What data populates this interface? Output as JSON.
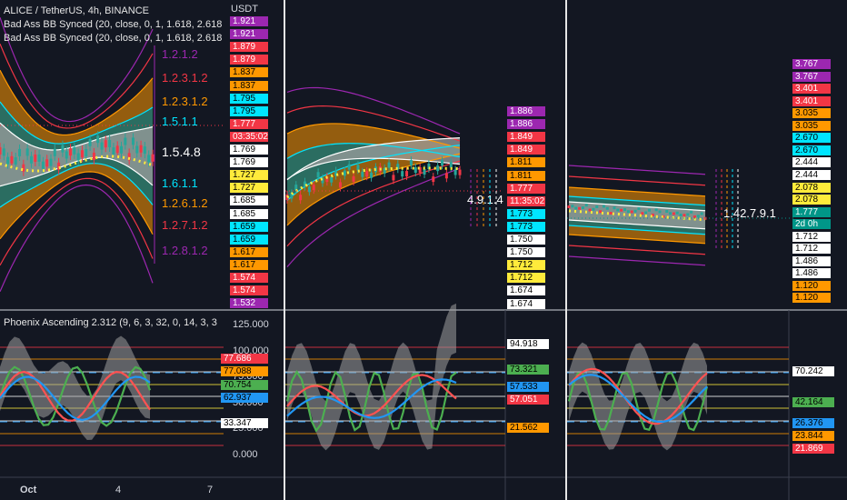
{
  "colors": {
    "bg": "#131722",
    "purple": "#9c27b0",
    "red": "#f23645",
    "orange": "#ff9800",
    "cyan": "#00e5ff",
    "white": "#ffffff",
    "yellow": "#ffeb3b",
    "green": "#4caf50",
    "blue": "#2196f3",
    "teal": "#009688"
  },
  "panel1": {
    "symbol_line": "ALICE / TetherUS, 4h, BINANCE",
    "indicator1": "Bad Ass BB Synced (20, close, 0, 1, 1.618, 2.618",
    "indicator2": "Bad Ass BB Synced (20, close, 0, 1, 1.618, 2.618",
    "osc_title": "Phoenix Ascending 2.312 (9, 6, 3, 32, 0, 14, 3, 3",
    "currency": "USDT",
    "price_tags": [
      {
        "text": "1.921",
        "color": "#9c27b0"
      },
      {
        "text": "1.921",
        "color": "#9c27b0"
      },
      {
        "text": "1.879",
        "color": "#f23645"
      },
      {
        "text": "1.879",
        "color": "#f23645"
      },
      {
        "text": "1.837",
        "color": "#ff9800"
      },
      {
        "text": "1.837",
        "color": "#ff9800"
      },
      {
        "text": "1.795",
        "color": "#00e5ff"
      },
      {
        "text": "1.795",
        "color": "#00e5ff"
      },
      {
        "text": "1.777",
        "color": "#f23645"
      },
      {
        "text": "03:35:02",
        "color": "#f23645"
      },
      {
        "text": "1.769",
        "color": "#ffffff"
      },
      {
        "text": "1.769",
        "color": "#ffffff"
      },
      {
        "text": "1.727",
        "color": "#ffeb3b"
      },
      {
        "text": "1.727",
        "color": "#ffeb3b"
      },
      {
        "text": "1.685",
        "color": "#ffffff"
      },
      {
        "text": "1.685",
        "color": "#ffffff"
      },
      {
        "text": "1.659",
        "color": "#00e5ff"
      },
      {
        "text": "1.659",
        "color": "#00e5ff"
      },
      {
        "text": "1.617",
        "color": "#ff9800"
      },
      {
        "text": "1.617",
        "color": "#ff9800"
      },
      {
        "text": "1.574",
        "color": "#f23645"
      },
      {
        "text": "1.574",
        "color": "#f23645"
      },
      {
        "text": "1.532",
        "color": "#9c27b0"
      }
    ],
    "osc_axis": [
      "125.000",
      "100.000",
      "75.000",
      "50.000",
      "25.000",
      "0.000"
    ],
    "osc_tags": [
      {
        "text": "77.686",
        "color": "#f23645"
      },
      {
        "text": "77.088",
        "color": "#ff9800"
      },
      {
        "text": "70.754",
        "color": "#4caf50"
      },
      {
        "text": "62.937",
        "color": "#2196f3"
      },
      {
        "text": "33.347",
        "color": "#ffffff"
      }
    ],
    "time_labels": [
      "Oct",
      "4",
      "7"
    ],
    "fib_labels": [
      "1.2.1.2",
      "1.2.3.1.2",
      "1.2.3.1.2",
      "1.5.1.1",
      "1.5.4.8",
      "1.6.1.1",
      "1.2.6.1.2",
      "1.2.7.1.2",
      "1.2.8.1.2"
    ]
  },
  "panel2": {
    "price_tags": [
      {
        "text": "1.886",
        "color": "#9c27b0"
      },
      {
        "text": "1.886",
        "color": "#9c27b0"
      },
      {
        "text": "1.849",
        "color": "#f23645"
      },
      {
        "text": "1.849",
        "color": "#f23645"
      },
      {
        "text": "1.811",
        "color": "#ff9800"
      },
      {
        "text": "1.811",
        "color": "#ff9800"
      },
      {
        "text": "1.777",
        "color": "#f23645"
      },
      {
        "text": "11:35:02",
        "color": "#f23645"
      },
      {
        "text": "1.773",
        "color": "#00e5ff"
      },
      {
        "text": "1.773",
        "color": "#00e5ff"
      },
      {
        "text": "1.750",
        "color": "#ffffff"
      },
      {
        "text": "1.750",
        "color": "#ffffff"
      },
      {
        "text": "1.712",
        "color": "#ffeb3b"
      },
      {
        "text": "1.712",
        "color": "#ffeb3b"
      },
      {
        "text": "1.674",
        "color": "#ffffff"
      },
      {
        "text": "1.674",
        "color": "#ffffff"
      }
    ],
    "osc_tags": [
      {
        "text": "94.918",
        "color": "#ffffff"
      },
      {
        "text": "73.321",
        "color": "#4caf50"
      },
      {
        "text": "57.533",
        "color": "#2196f3"
      },
      {
        "text": "57.051",
        "color": "#f23645"
      },
      {
        "text": "21.562",
        "color": "#ff9800"
      }
    ],
    "fib_label": "4.9.1.4"
  },
  "panel3": {
    "price_tags": [
      {
        "text": "3.767",
        "color": "#9c27b0"
      },
      {
        "text": "3.767",
        "color": "#9c27b0"
      },
      {
        "text": "3.401",
        "color": "#f23645"
      },
      {
        "text": "3.401",
        "color": "#f23645"
      },
      {
        "text": "3.035",
        "color": "#ff9800"
      },
      {
        "text": "3.035",
        "color": "#ff9800"
      },
      {
        "text": "2.670",
        "color": "#00e5ff"
      },
      {
        "text": "2.670",
        "color": "#00e5ff"
      },
      {
        "text": "2.444",
        "color": "#ffffff"
      },
      {
        "text": "2.444",
        "color": "#ffffff"
      },
      {
        "text": "2.078",
        "color": "#ffeb3b"
      },
      {
        "text": "2.078",
        "color": "#ffeb3b"
      },
      {
        "text": "1.777",
        "color": "#009688"
      },
      {
        "text": "2d 0h",
        "color": "#009688"
      },
      {
        "text": "1.712",
        "color": "#ffffff"
      },
      {
        "text": "1.712",
        "color": "#ffffff"
      },
      {
        "text": "1.486",
        "color": "#ffffff"
      },
      {
        "text": "1.486",
        "color": "#ffffff"
      },
      {
        "text": "1.120",
        "color": "#ff9800"
      },
      {
        "text": "1.120",
        "color": "#ff9800"
      }
    ],
    "osc_tags": [
      {
        "text": "70.242",
        "color": "#ffffff"
      },
      {
        "text": "42.164",
        "color": "#4caf50"
      },
      {
        "text": "26.376",
        "color": "#2196f3"
      },
      {
        "text": "23.844",
        "color": "#ff9800"
      },
      {
        "text": "21.869",
        "color": "#f23645"
      }
    ],
    "fib_label": "1.42.7.9.1"
  }
}
